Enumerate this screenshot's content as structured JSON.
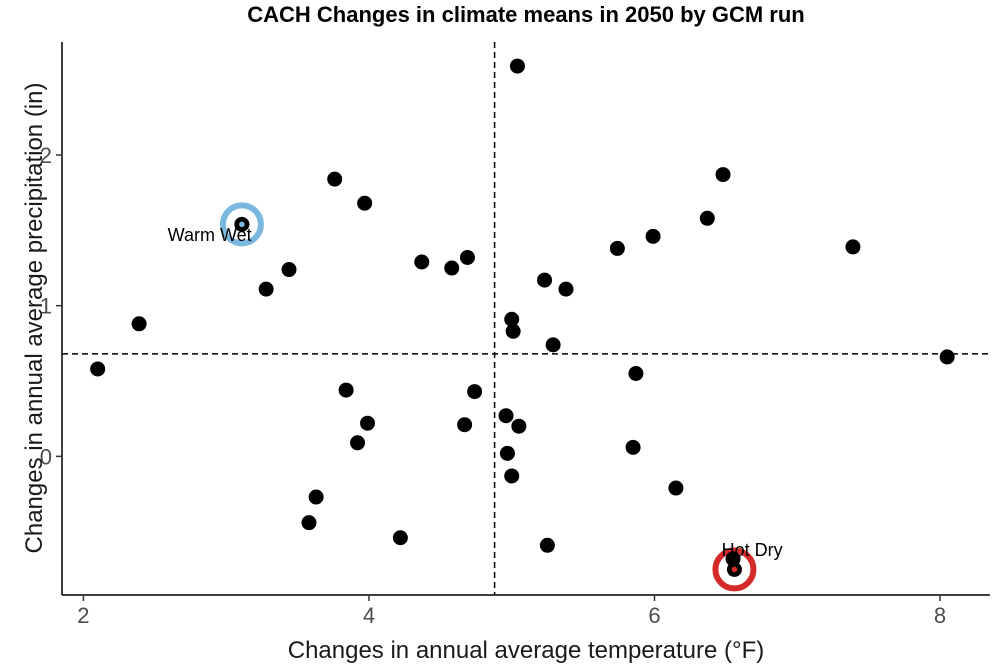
{
  "chart_data": {
    "type": "scatter",
    "title": "CACH Changes in climate means in 2050 by GCM run",
    "xlabel": "Changes in annual average temperature (°F)",
    "ylabel": "Changes in annual average precipitation (in)",
    "xlim": [
      1.85,
      8.35
    ],
    "ylim": [
      -0.92,
      2.75
    ],
    "xticks": [
      2,
      4,
      6,
      8
    ],
    "yticks": [
      0,
      1,
      2
    ],
    "xtick_labels": [
      "2",
      "4",
      "6",
      "8"
    ],
    "ytick_labels": [
      "0",
      "1",
      "2"
    ],
    "grid": false,
    "vline_x": 4.88,
    "hline_y": 0.68,
    "point_color": "#000000",
    "points": [
      {
        "x": 5.04,
        "y": 2.59
      },
      {
        "x": 6.48,
        "y": 1.87
      },
      {
        "x": 3.76,
        "y": 1.84
      },
      {
        "x": 3.97,
        "y": 1.68
      },
      {
        "x": 6.37,
        "y": 1.58
      },
      {
        "x": 3.11,
        "y": 1.54
      },
      {
        "x": 5.99,
        "y": 1.46
      },
      {
        "x": 7.39,
        "y": 1.39
      },
      {
        "x": 5.74,
        "y": 1.38
      },
      {
        "x": 4.69,
        "y": 1.32
      },
      {
        "x": 4.37,
        "y": 1.29
      },
      {
        "x": 4.58,
        "y": 1.25
      },
      {
        "x": 3.44,
        "y": 1.24
      },
      {
        "x": 5.23,
        "y": 1.17
      },
      {
        "x": 3.28,
        "y": 1.11
      },
      {
        "x": 5.38,
        "y": 1.11
      },
      {
        "x": 5.0,
        "y": 0.91
      },
      {
        "x": 2.39,
        "y": 0.88
      },
      {
        "x": 5.01,
        "y": 0.83
      },
      {
        "x": 5.29,
        "y": 0.74
      },
      {
        "x": 8.05,
        "y": 0.66
      },
      {
        "x": 2.1,
        "y": 0.58
      },
      {
        "x": 5.87,
        "y": 0.55
      },
      {
        "x": 3.84,
        "y": 0.44
      },
      {
        "x": 4.74,
        "y": 0.43
      },
      {
        "x": 4.96,
        "y": 0.27
      },
      {
        "x": 3.99,
        "y": 0.22
      },
      {
        "x": 4.67,
        "y": 0.21
      },
      {
        "x": 5.05,
        "y": 0.2
      },
      {
        "x": 3.92,
        "y": 0.09
      },
      {
        "x": 5.85,
        "y": 0.06
      },
      {
        "x": 4.97,
        "y": 0.02
      },
      {
        "x": 5.0,
        "y": -0.13
      },
      {
        "x": 6.15,
        "y": -0.21
      },
      {
        "x": 3.63,
        "y": -0.27
      },
      {
        "x": 3.58,
        "y": -0.44
      },
      {
        "x": 4.22,
        "y": -0.54
      },
      {
        "x": 5.25,
        "y": -0.59
      },
      {
        "x": 6.55,
        "y": -0.68
      },
      {
        "x": 6.56,
        "y": -0.75
      }
    ],
    "highlights": [
      {
        "label": "Warm Wet",
        "x": 3.11,
        "y": 1.54,
        "ring_color": "#7ab8e0",
        "dot_color": "#7ab8e0",
        "label_dx": -0.52,
        "label_dy": -0.11
      },
      {
        "label": "Hot Dry",
        "x": 6.56,
        "y": -0.75,
        "ring_color": "#d42a2a",
        "dot_color": "#d42a2a",
        "label_dx": -0.09,
        "label_dy": 0.09
      }
    ]
  }
}
